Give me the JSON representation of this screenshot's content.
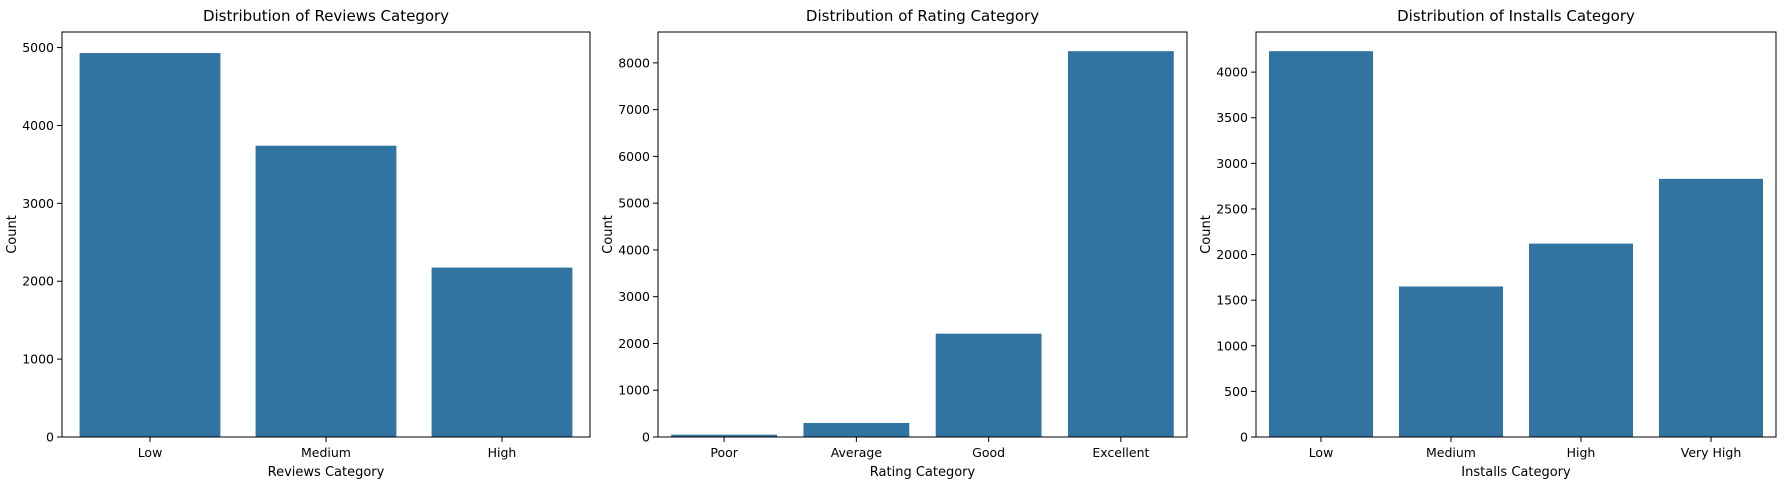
{
  "chart_data": [
    {
      "type": "bar",
      "title": "Distribution of Reviews Category",
      "xlabel": "Reviews Category",
      "ylabel": "Count",
      "categories": [
        "Low",
        "Medium",
        "High"
      ],
      "values": [
        4930,
        3740,
        2175
      ],
      "ylim": [
        0,
        5200
      ],
      "yticks": [
        0,
        1000,
        2000,
        3000,
        4000,
        5000
      ],
      "color": "#3274a1",
      "grid": false
    },
    {
      "type": "bar",
      "title": "Distribution of Rating Category",
      "xlabel": "Rating Category",
      "ylabel": "Count",
      "categories": [
        "Poor",
        "Average",
        "Good",
        "Excellent"
      ],
      "values": [
        50,
        300,
        2210,
        8250
      ],
      "ylim": [
        0,
        8660
      ],
      "yticks": [
        0,
        1000,
        2000,
        3000,
        4000,
        5000,
        6000,
        7000,
        8000
      ],
      "color": "#3274a1",
      "grid": false
    },
    {
      "type": "bar",
      "title": "Distribution of Installs Category",
      "xlabel": "Installs Category",
      "ylabel": "Count",
      "categories": [
        "Low",
        "Medium",
        "High",
        "Very High"
      ],
      "values": [
        4230,
        1650,
        2120,
        2830
      ],
      "ylim": [
        0,
        4440
      ],
      "yticks": [
        0,
        500,
        1000,
        1500,
        2000,
        2500,
        3000,
        3500,
        4000
      ],
      "color": "#3274a1",
      "grid": false
    }
  ]
}
